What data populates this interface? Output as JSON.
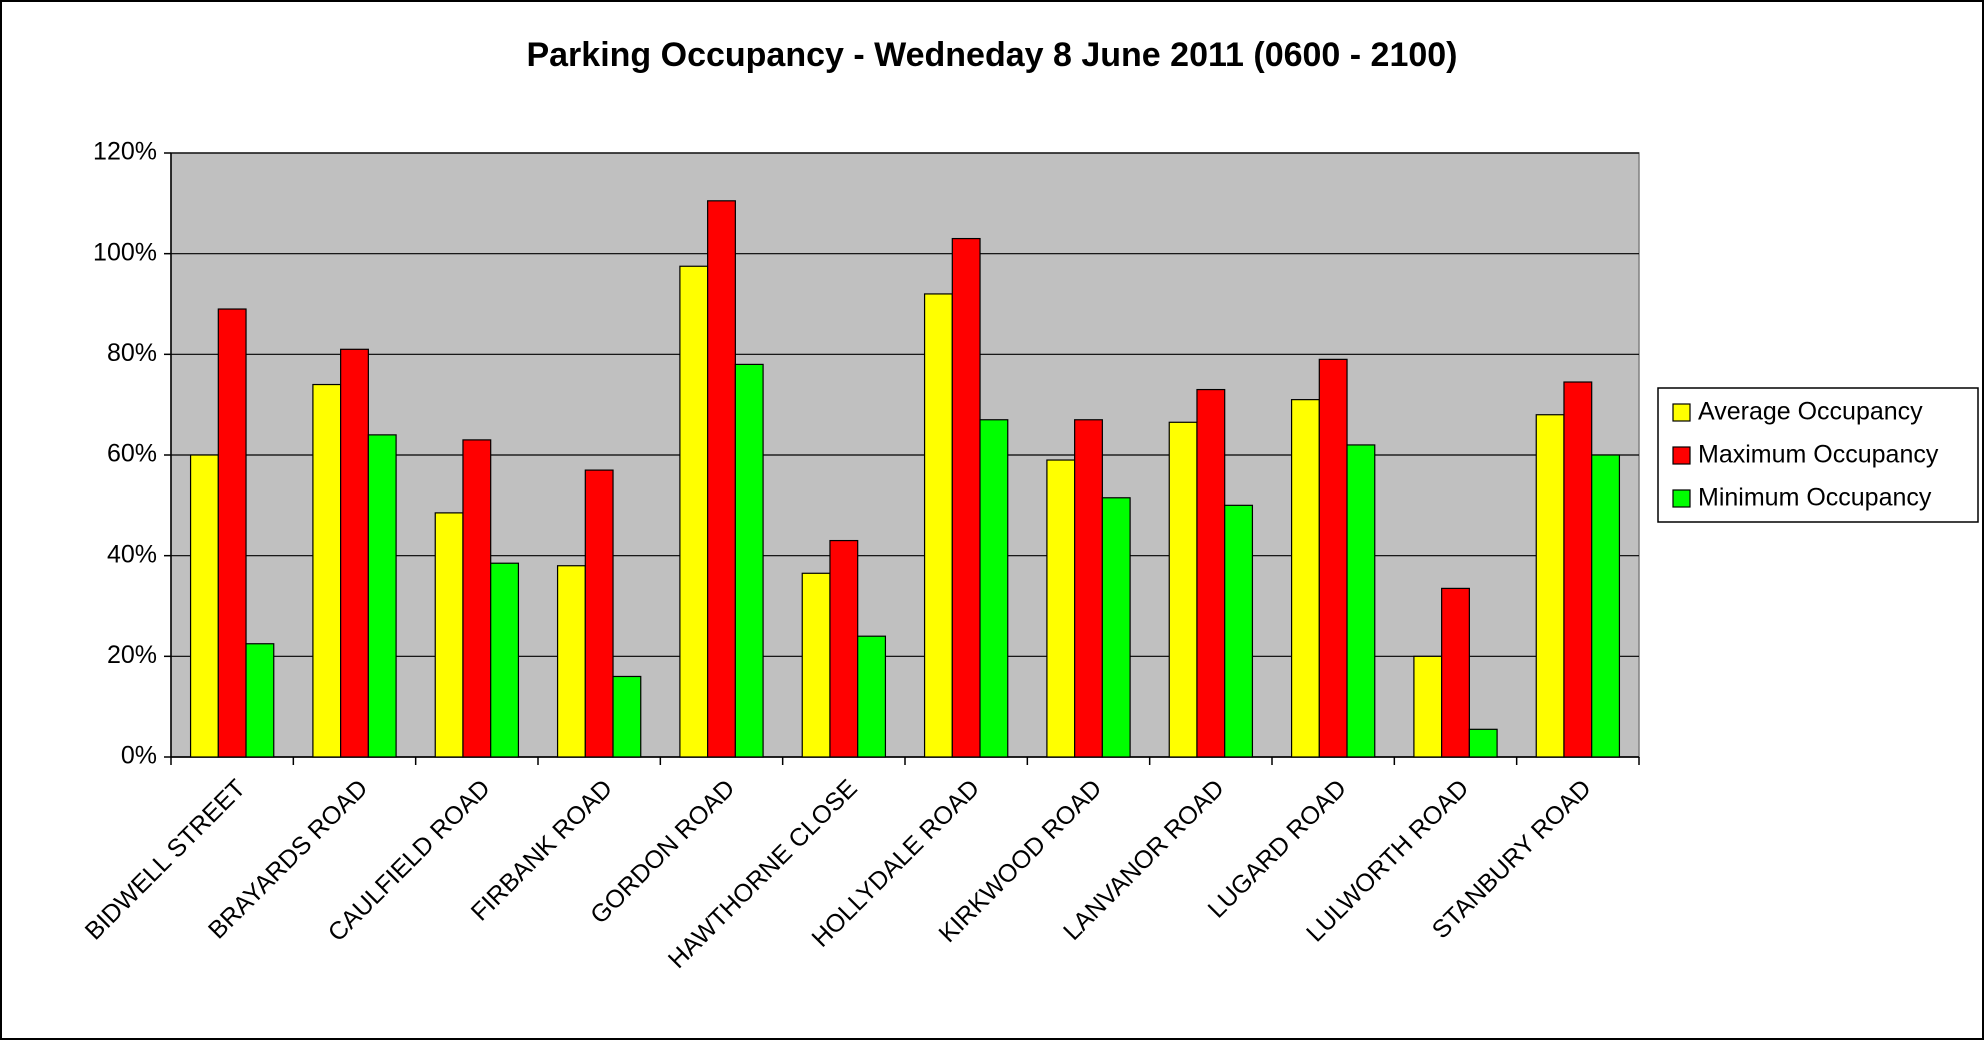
{
  "chart_data": {
    "type": "bar",
    "title": "Parking Occupancy - Wedneday 8 June 2011 (0600 - 2100)",
    "categories": [
      "BIDWELL STREET",
      "BRAYARDS ROAD",
      "CAULFIELD ROAD",
      "FIRBANK ROAD",
      "GORDON ROAD",
      "HAWTHORNE CLOSE",
      "HOLLYDALE ROAD",
      "KIRKWOOD ROAD",
      "LANVANOR ROAD",
      "LUGARD ROAD",
      "LULWORTH ROAD",
      "STANBURY ROAD"
    ],
    "series": [
      {
        "name": "Average Occupancy",
        "color": "#ffff00",
        "values": [
          60,
          74,
          48.5,
          38,
          97.5,
          36.5,
          92,
          59,
          66.5,
          71,
          20,
          68
        ]
      },
      {
        "name": "Maximum Occupancy",
        "color": "#ff0000",
        "values": [
          89,
          81,
          63,
          57,
          110.5,
          43,
          103,
          67,
          73,
          79,
          33.5,
          74.5
        ]
      },
      {
        "name": "Minimum Occupancy",
        "color": "#00ff00",
        "values": [
          22.5,
          64,
          38.5,
          16,
          78,
          24,
          67,
          51.5,
          50,
          62,
          5.5,
          60
        ]
      }
    ],
    "ylim": [
      0,
      120
    ],
    "yticks": [
      {
        "value": 0,
        "label": "0%"
      },
      {
        "value": 20,
        "label": "20%"
      },
      {
        "value": 40,
        "label": "40%"
      },
      {
        "value": 60,
        "label": "60%"
      },
      {
        "value": 80,
        "label": "80%"
      },
      {
        "value": 100,
        "label": "100%"
      },
      {
        "value": 120,
        "label": "120%"
      }
    ],
    "grid": true,
    "legend": "right",
    "plot_background": "#c0c0c0"
  }
}
